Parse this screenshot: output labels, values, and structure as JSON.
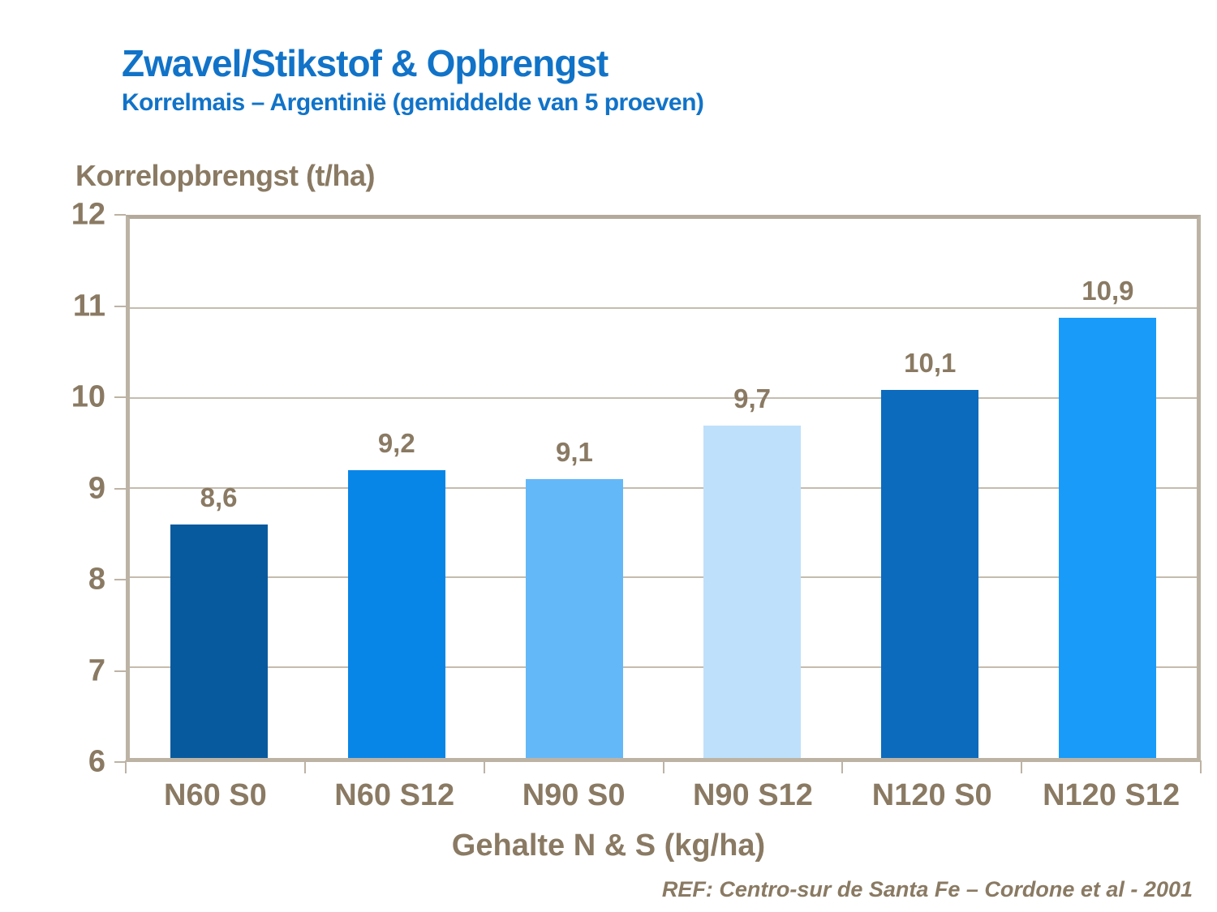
{
  "header": {
    "title": "Zwavel/Stikstof & Opbrengst",
    "subtitle": "Korrelmais – Argentinië (gemiddelde van 5 proeven)"
  },
  "chart_data": {
    "type": "bar",
    "title": "Zwavel/Stikstof & Opbrengst",
    "subtitle": "Korrelmais – Argentinië (gemiddelde van 5 proeven)",
    "categories": [
      "N60 S0",
      "N60 S12",
      "N90 S0",
      "N90 S12",
      "N120 S0",
      "N120 S12"
    ],
    "values": [
      8.6,
      9.2,
      9.1,
      9.7,
      10.1,
      10.9
    ],
    "value_labels": [
      "8,6",
      "9,2",
      "9,1",
      "9,7",
      "10,1",
      "10,9"
    ],
    "bar_colors": [
      "#085a9e",
      "#0886e8",
      "#63b8f8",
      "#bfe0fb",
      "#0c6bbd",
      "#189bf9"
    ],
    "ylabel": "Korrelopbrengst (t/ha)",
    "xlabel": "Gehalte N & S (kg/ha)",
    "ylim": [
      6,
      12
    ],
    "ytick_step": 1,
    "ytick_labels": [
      "6",
      "7",
      "8",
      "9",
      "10",
      "11",
      "12"
    ],
    "grid": true,
    "legend": false
  },
  "footer": {
    "ref": "REF: Centro-sur de Santa Fe – Cordone et al - 2001"
  },
  "colors": {
    "title": "#1173c8",
    "text": "#8a7a63",
    "axis": "#bdb3a5",
    "grid": "#c5bcae",
    "background": "#ffffff"
  }
}
